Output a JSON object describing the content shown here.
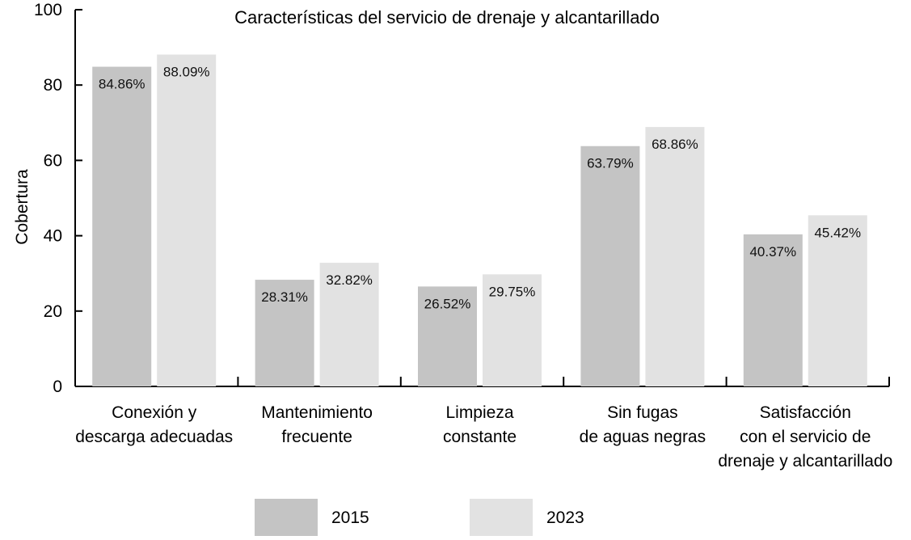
{
  "chart_data": {
    "type": "bar",
    "title": "Características del servicio de drenaje y alcantarillado",
    "xlabel": "",
    "ylabel": "Cobertura",
    "ylim": [
      0,
      100
    ],
    "yticks": [
      "0",
      "20",
      "40",
      "60",
      "80",
      "100"
    ],
    "categories": [
      [
        "Conexión y",
        "descarga adecuadas"
      ],
      [
        "Mantenimiento",
        "frecuente"
      ],
      [
        "Limpieza",
        "constante"
      ],
      [
        "Sin fugas",
        "de aguas negras"
      ],
      [
        "Satisfacción",
        "con el servicio de",
        "drenaje y alcantarillado"
      ]
    ],
    "series": [
      {
        "name": "2015",
        "color": "#c4c4c4",
        "values": [
          84.86,
          28.31,
          26.52,
          63.79,
          40.37
        ],
        "labels": [
          "84.86%",
          "28.31%",
          "26.52%",
          "63.79%",
          "40.37%"
        ]
      },
      {
        "name": "2023",
        "color": "#e2e2e2",
        "values": [
          88.09,
          32.82,
          29.75,
          68.86,
          45.42
        ],
        "labels": [
          "88.09%",
          "32.82%",
          "29.75%",
          "68.86%",
          "45.42%"
        ]
      }
    ],
    "legend_position": "bottom"
  }
}
